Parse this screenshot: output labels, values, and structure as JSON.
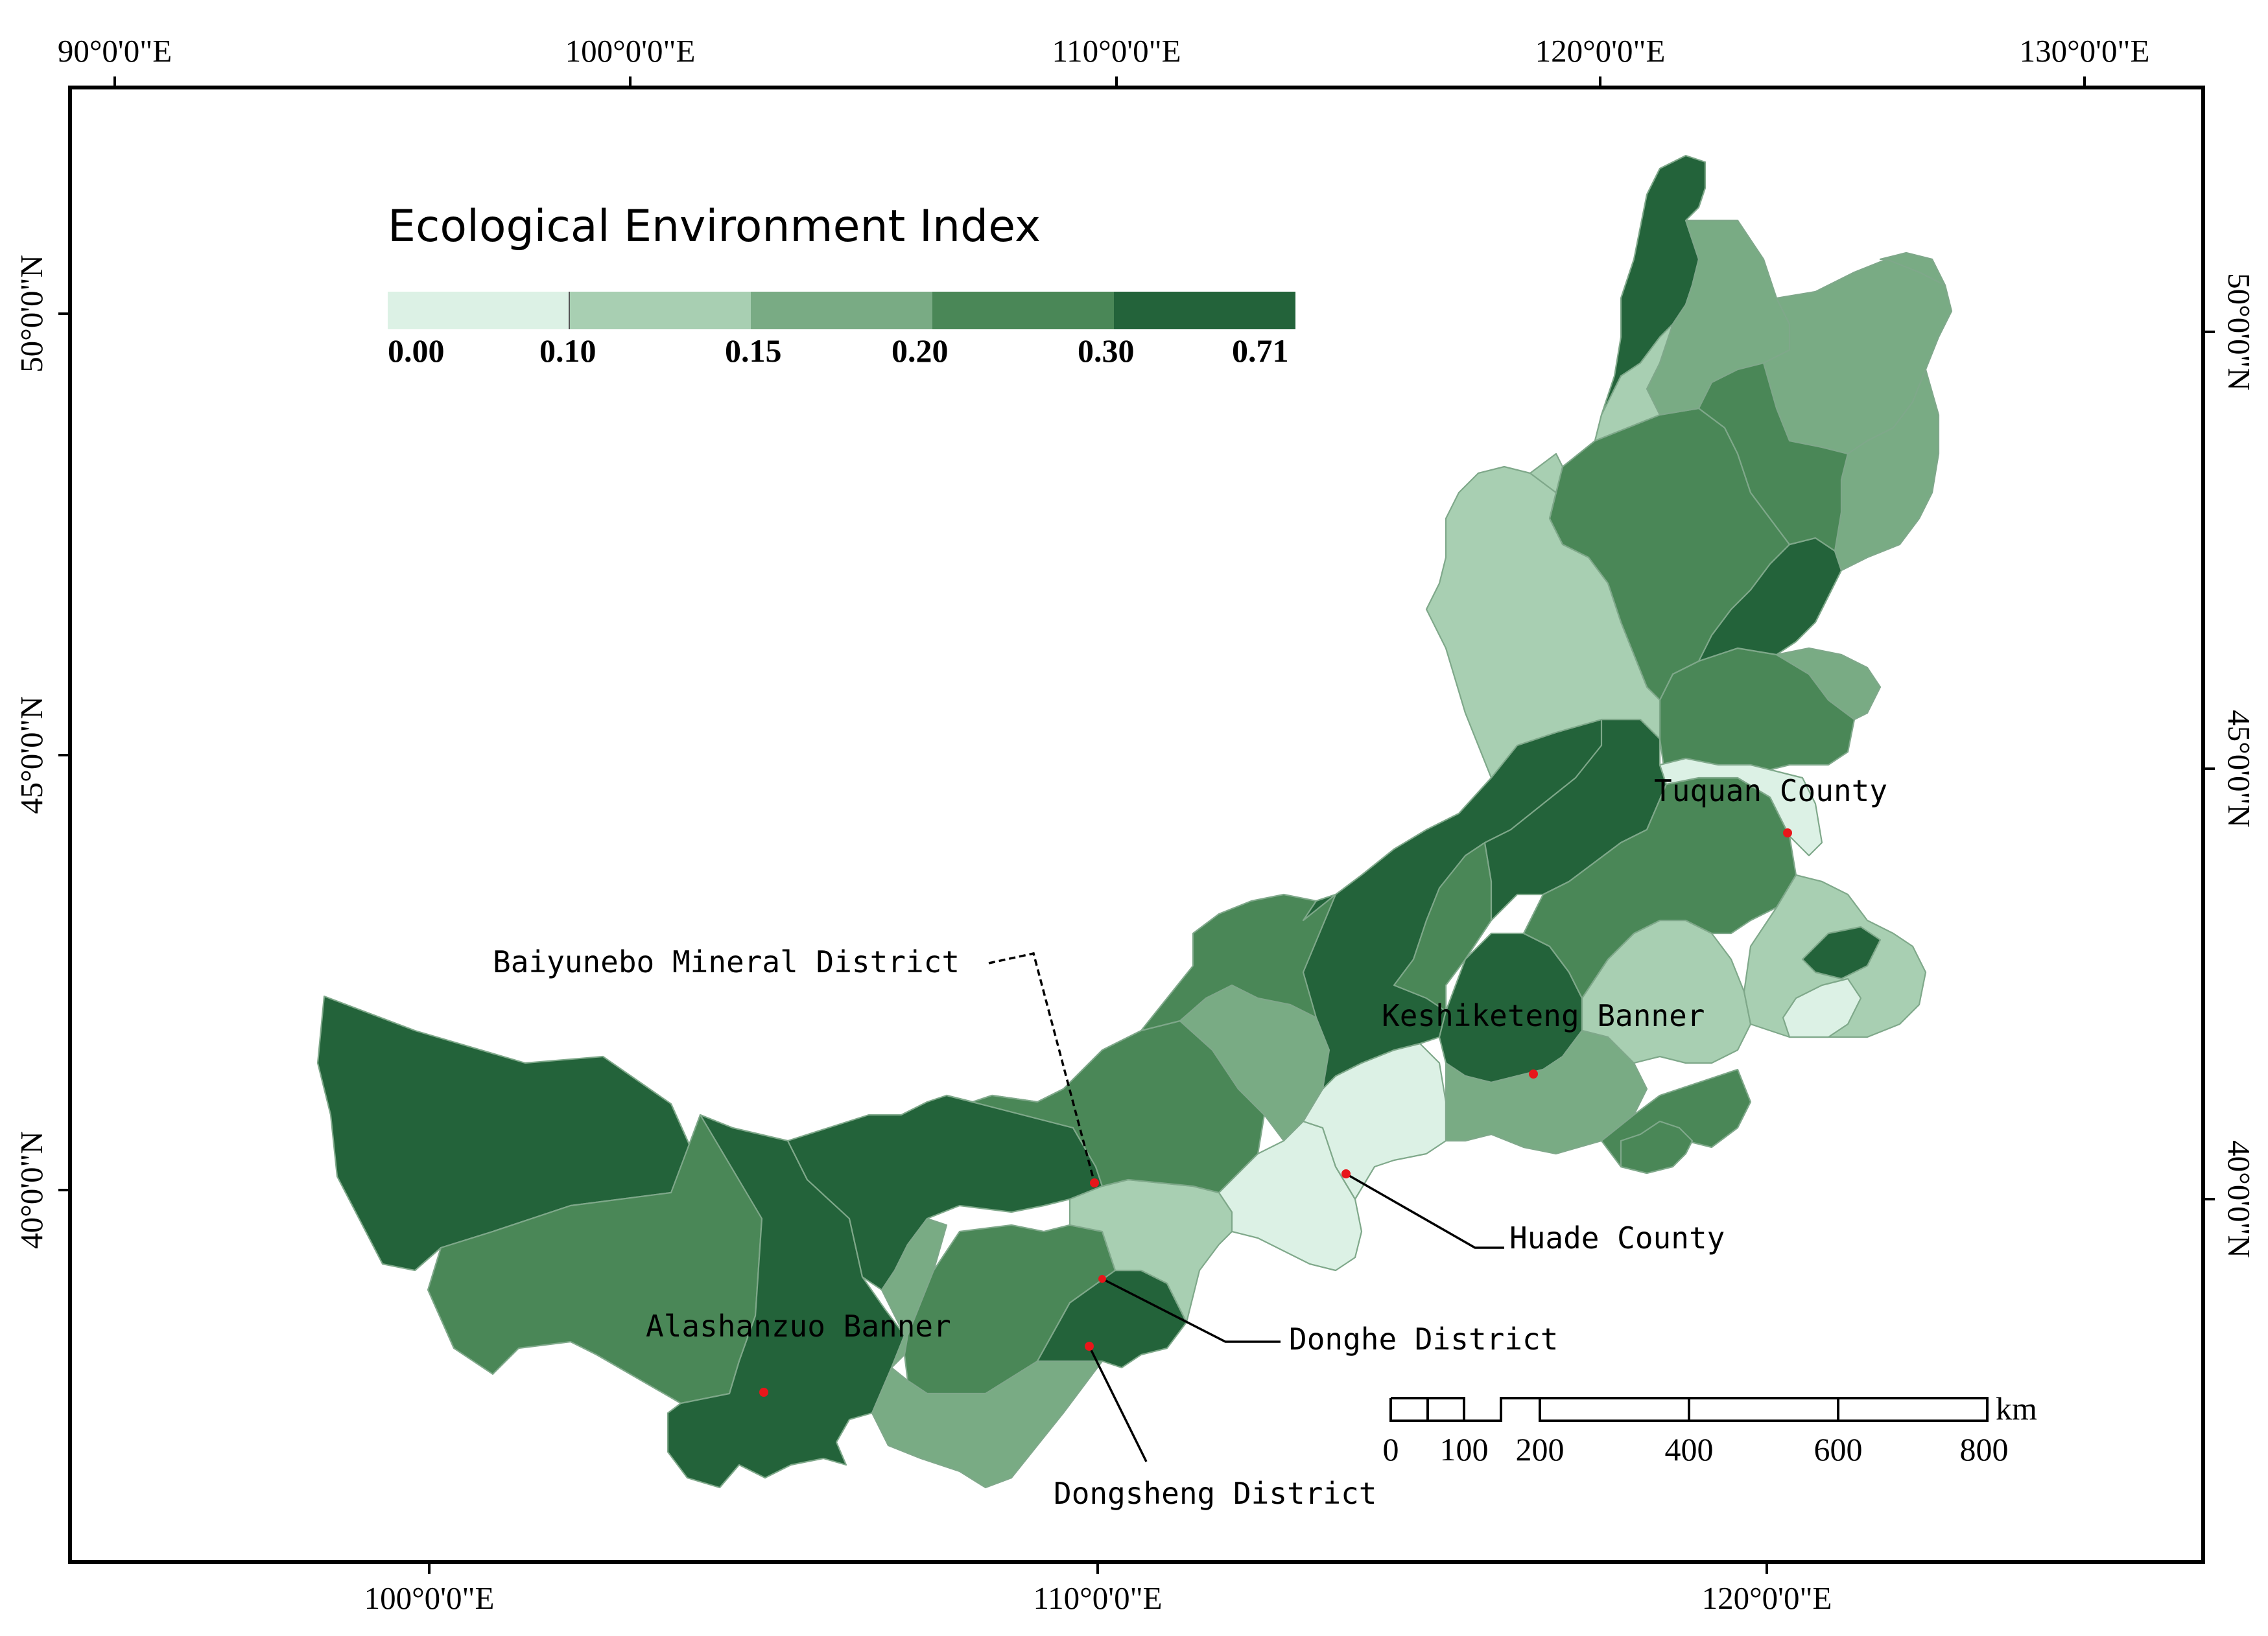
{
  "graticule": {
    "top_lon_labels": [
      "90°0'0\"E",
      "100°0'0\"E",
      "110°0'0\"E",
      "120°0'0\"E",
      "130°0'0\"E"
    ],
    "bottom_lon_labels": [
      "100°0'0\"E",
      "110°0'0\"E",
      "120°0'0\"E"
    ],
    "left_lat_labels": [
      "50°0'0\"N",
      "45°0'0\"N",
      "40°0'0\"N"
    ],
    "right_lat_labels": [
      "50°0'0\"N",
      "45°0'0\"N",
      "40°0'0\"N"
    ]
  },
  "legend": {
    "title": "Ecological Environment Index",
    "breaks": [
      "0.00",
      "0.10",
      "0.15",
      "0.20",
      "0.30",
      "0.71"
    ],
    "colors": [
      "#dcf1e5",
      "#a8cfb2",
      "#79ab84",
      "#4a8757",
      "#23633a"
    ]
  },
  "scale_bar": {
    "labels": [
      "0",
      "100",
      "200",
      "400",
      "600",
      "800"
    ],
    "unit": "km"
  },
  "places": [
    {
      "name": "Baiyunebo Mineral District"
    },
    {
      "name": "Alashanzuo Banner"
    },
    {
      "name": "Dongsheng District"
    },
    {
      "name": "Donghe District"
    },
    {
      "name": "Huade County"
    },
    {
      "name": "Keshiketeng Banner"
    },
    {
      "name": "Tuquan County"
    }
  ],
  "marker_color": "#e8161a",
  "region_classes": {
    "greater_khingan_north": 4,
    "hulunbuir_east": 2,
    "hulunbuir_west": 1,
    "hulunbuir_centre": 3,
    "hulunbuir_south": 4,
    "hinggan": 3,
    "tuquan": 0,
    "xilin_north": 4,
    "xilin_centre": 3,
    "chifeng": 2,
    "chifeng_keshiketeng": 4,
    "chifeng_south": 1,
    "chifeng_pocket": 0,
    "ulanqab_north": 2,
    "ulanqab_south": 0,
    "huade": 0,
    "bayannur": 4,
    "baotou_north": 3,
    "alxa_west": 4,
    "alxa_centre": 3,
    "alashanzuo": 4,
    "wuhai": 2,
    "ordos_west": 3,
    "ordos_south": 2,
    "dongsheng": 4,
    "hohhot": 1,
    "tongliao_south": 1,
    "tongliao": 3
  }
}
